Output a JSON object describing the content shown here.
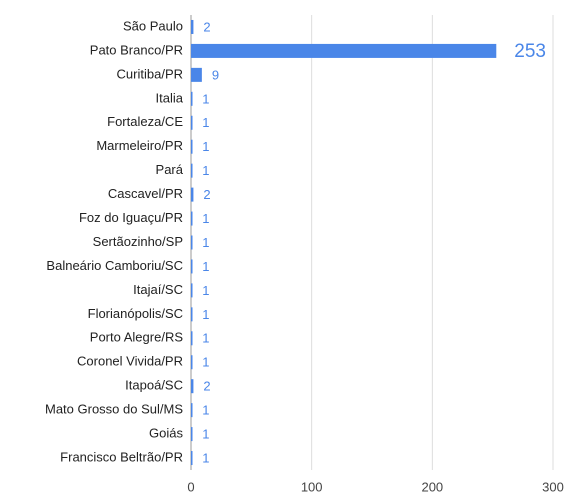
{
  "chart_data": {
    "type": "bar",
    "orientation": "horizontal",
    "categories": [
      "São Paulo",
      "Pato Branco/PR",
      "Curitiba/PR",
      "Italia",
      "Fortaleza/CE",
      "Marmeleiro/PR",
      "Pará",
      "Cascavel/PR",
      "Foz do Iguaçu/PR",
      "Sertãozinho/SP",
      "Balneário Camboriu/SC",
      "Itajaí/SC",
      "Florianópolis/SC",
      "Porto Alegre/RS",
      "Coronel Vivida/PR",
      "Itapoá/SC",
      "Mato Grosso do Sul/MS",
      "Goiás",
      "Francisco Beltrão/PR"
    ],
    "values": [
      2,
      253,
      9,
      1,
      1,
      1,
      1,
      2,
      1,
      1,
      1,
      1,
      1,
      1,
      1,
      2,
      1,
      1,
      1
    ],
    "color": "#4a86e8",
    "xlim": [
      0,
      300
    ],
    "xticks": [
      0,
      100,
      200,
      300
    ],
    "grid": true
  }
}
